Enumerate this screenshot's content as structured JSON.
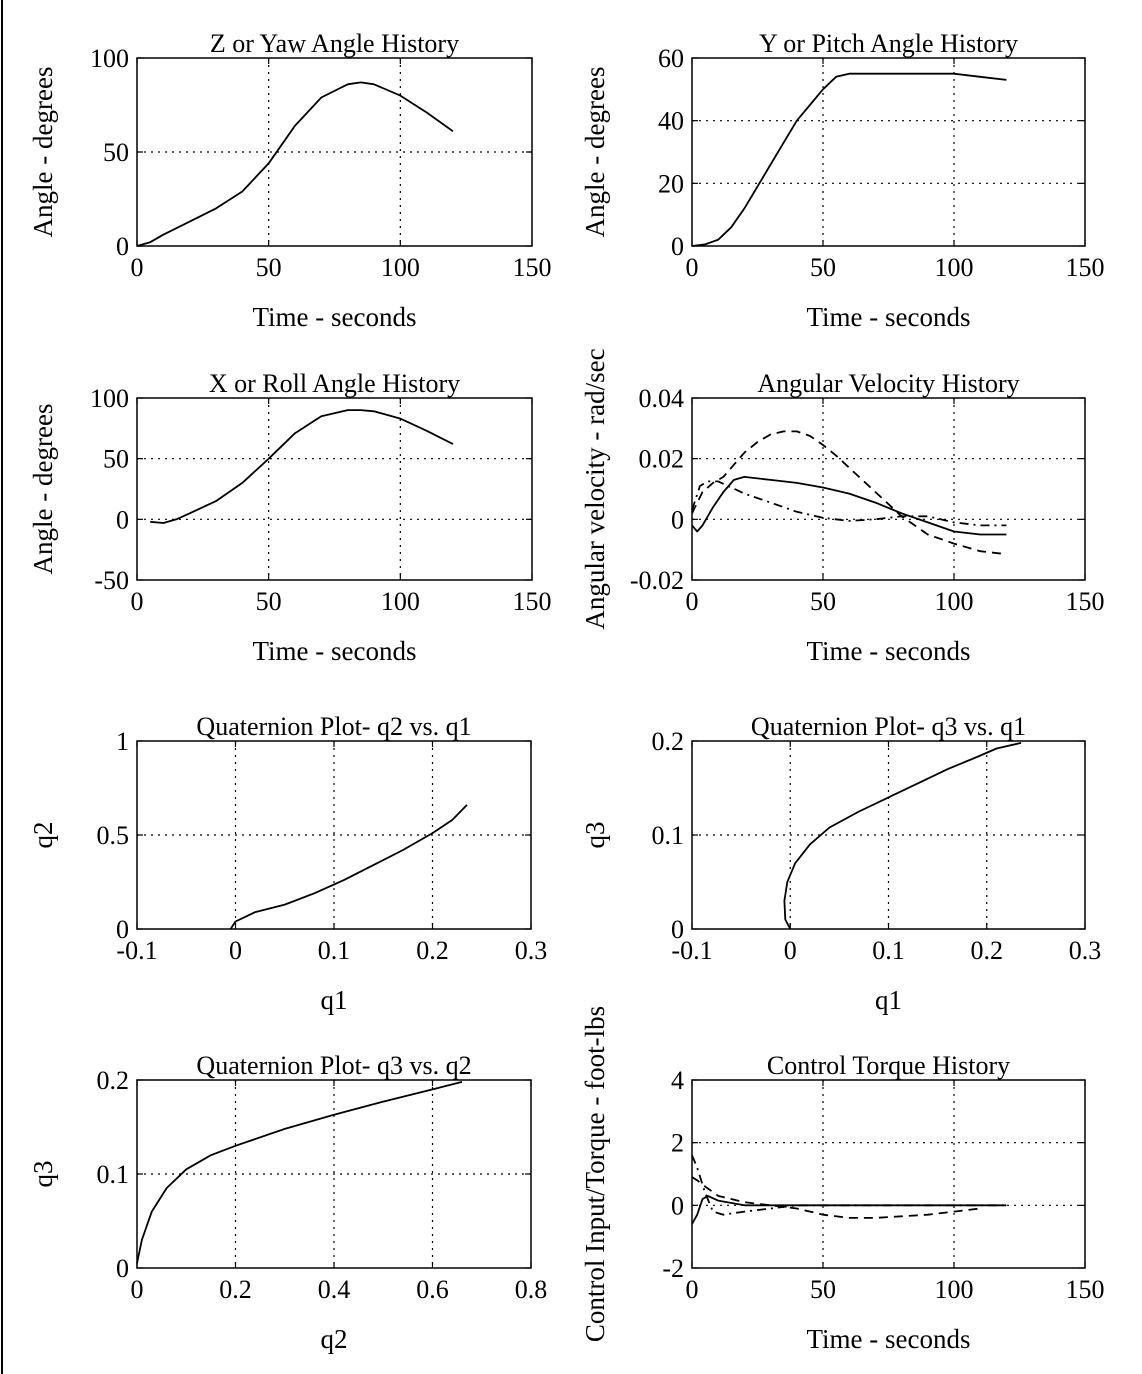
{
  "chart_data": [
    {
      "type": "line",
      "title": "Z or Yaw Angle History",
      "xlabel": "Time - seconds",
      "ylabel": "Angle - degrees",
      "xlim": [
        0,
        150
      ],
      "ylim": [
        0,
        100
      ],
      "xticks": [
        0,
        50,
        100,
        150
      ],
      "yticks": [
        0,
        50,
        100
      ],
      "xtick_labels": [
        "0",
        "50",
        "100",
        "150"
      ],
      "ytick_labels": [
        "0",
        "50",
        "100"
      ],
      "grid": true,
      "series": [
        {
          "style": "solid",
          "x": [
            0,
            5,
            10,
            20,
            30,
            40,
            50,
            60,
            70,
            80,
            85,
            90,
            100,
            110,
            120
          ],
          "y": [
            0,
            2,
            6,
            13,
            20,
            29,
            44,
            64,
            79,
            86,
            87,
            86,
            80,
            71,
            61
          ]
        }
      ]
    },
    {
      "type": "line",
      "title": "Y or Pitch Angle History",
      "xlabel": "Time - seconds",
      "ylabel": "Angle - degrees",
      "xlim": [
        0,
        150
      ],
      "ylim": [
        0,
        60
      ],
      "xticks": [
        0,
        50,
        100,
        150
      ],
      "yticks": [
        0,
        20,
        40,
        60
      ],
      "xtick_labels": [
        "0",
        "50",
        "100",
        "150"
      ],
      "ytick_labels": [
        "0",
        "20",
        "40",
        "60"
      ],
      "grid": true,
      "series": [
        {
          "style": "solid",
          "x": [
            0,
            5,
            10,
            15,
            20,
            25,
            30,
            35,
            40,
            45,
            50,
            55,
            60,
            70,
            80,
            90,
            100,
            110,
            120
          ],
          "y": [
            0,
            0.5,
            2,
            6,
            12,
            19,
            26,
            33,
            40,
            45,
            50,
            54,
            55,
            55,
            55,
            55,
            55,
            54,
            53
          ]
        }
      ]
    },
    {
      "type": "line",
      "title": "X or Roll Angle History",
      "xlabel": "Time - seconds",
      "ylabel": "Angle - degrees",
      "xlim": [
        0,
        150
      ],
      "ylim": [
        -50,
        100
      ],
      "xticks": [
        0,
        50,
        100,
        150
      ],
      "yticks": [
        -50,
        0,
        50,
        100
      ],
      "xtick_labels": [
        "0",
        "50",
        "100",
        "150"
      ],
      "ytick_labels": [
        "-50",
        "0",
        "50",
        "100"
      ],
      "grid": true,
      "series": [
        {
          "style": "solid",
          "x": [
            5,
            10,
            15,
            20,
            30,
            40,
            50,
            60,
            70,
            80,
            85,
            90,
            100,
            110,
            120
          ],
          "y": [
            -2,
            -3,
            0,
            5,
            15,
            30,
            50,
            71,
            85,
            90,
            90,
            89,
            83,
            73,
            62
          ]
        }
      ]
    },
    {
      "type": "line",
      "title": "Angular Velocity History",
      "xlabel": "Time - seconds",
      "ylabel": "Angular velocity - rad/sec",
      "xlim": [
        0,
        150
      ],
      "ylim": [
        -0.02,
        0.04
      ],
      "xticks": [
        0,
        50,
        100,
        150
      ],
      "yticks": [
        -0.02,
        0,
        0.02,
        0.04
      ],
      "xtick_labels": [
        "0",
        "50",
        "100",
        "150"
      ],
      "ytick_labels": [
        "-0.02",
        "0",
        "0.02",
        "0.04"
      ],
      "grid": true,
      "series": [
        {
          "style": "solid",
          "x": [
            0,
            2,
            4,
            8,
            12,
            16,
            20,
            30,
            40,
            50,
            60,
            70,
            80,
            90,
            100,
            110,
            120
          ],
          "y": [
            -0.002,
            -0.004,
            -0.002,
            0.004,
            0.009,
            0.013,
            0.014,
            0.013,
            0.012,
            0.0105,
            0.0085,
            0.0055,
            0.002,
            -0.001,
            -0.004,
            -0.005,
            -0.005
          ]
        },
        {
          "style": "dashed",
          "x": [
            0,
            4,
            8,
            12,
            20,
            25,
            30,
            35,
            40,
            45,
            50,
            55,
            60,
            70,
            80,
            90,
            100,
            110,
            120
          ],
          "y": [
            0.002,
            0.009,
            0.012,
            0.014,
            0.022,
            0.0255,
            0.028,
            0.029,
            0.029,
            0.0275,
            0.0245,
            0.021,
            0.017,
            0.009,
            0.001,
            -0.005,
            -0.008,
            -0.0105,
            -0.0115
          ]
        },
        {
          "style": "dashdot",
          "x": [
            0,
            3,
            6,
            10,
            15,
            20,
            30,
            40,
            50,
            60,
            70,
            80,
            90,
            100,
            110,
            120
          ],
          "y": [
            0.003,
            0.011,
            0.0125,
            0.0125,
            0.0105,
            0.0085,
            0.0055,
            0.0025,
            0.0005,
            -0.0005,
            0.0,
            0.001,
            0.001,
            -0.001,
            -0.002,
            -0.002
          ]
        }
      ]
    },
    {
      "type": "line",
      "title": "Quaternion Plot- q2 vs. q1",
      "xlabel": "q1",
      "ylabel": "q2",
      "xlim": [
        -0.1,
        0.3
      ],
      "ylim": [
        0,
        1
      ],
      "xticks": [
        -0.1,
        0,
        0.1,
        0.2,
        0.3
      ],
      "yticks": [
        0,
        0.5,
        1
      ],
      "xtick_labels": [
        "-0.1",
        "0",
        "0.1",
        "0.2",
        "0.3"
      ],
      "ytick_labels": [
        "0",
        "0.5",
        "1"
      ],
      "grid": true,
      "series": [
        {
          "style": "solid",
          "x": [
            -0.005,
            0.0,
            0.02,
            0.05,
            0.08,
            0.11,
            0.14,
            0.17,
            0.2,
            0.22,
            0.235
          ],
          "y": [
            0.0,
            0.04,
            0.09,
            0.13,
            0.19,
            0.26,
            0.34,
            0.42,
            0.51,
            0.58,
            0.66
          ]
        }
      ]
    },
    {
      "type": "line",
      "title": "Quaternion Plot- q3 vs. q1",
      "xlabel": "q1",
      "ylabel": "q3",
      "xlim": [
        -0.1,
        0.3
      ],
      "ylim": [
        0,
        0.2
      ],
      "xticks": [
        -0.1,
        0,
        0.1,
        0.2,
        0.3
      ],
      "yticks": [
        0,
        0.1,
        0.2
      ],
      "xtick_labels": [
        "-0.1",
        "0",
        "0.1",
        "0.2",
        "0.3"
      ],
      "ytick_labels": [
        "0",
        "0.1",
        "0.2"
      ],
      "grid": true,
      "series": [
        {
          "style": "solid",
          "x": [
            0.0,
            -0.005,
            -0.006,
            -0.003,
            0.005,
            0.02,
            0.04,
            0.07,
            0.1,
            0.13,
            0.16,
            0.19,
            0.21,
            0.235
          ],
          "y": [
            0.0,
            0.01,
            0.03,
            0.05,
            0.07,
            0.09,
            0.108,
            0.125,
            0.14,
            0.155,
            0.17,
            0.183,
            0.192,
            0.198
          ]
        }
      ]
    },
    {
      "type": "line",
      "title": "Quaternion Plot- q3 vs. q2",
      "xlabel": "q2",
      "ylabel": "q3",
      "xlim": [
        0,
        0.8
      ],
      "ylim": [
        0,
        0.2
      ],
      "xticks": [
        0,
        0.2,
        0.4,
        0.6,
        0.8
      ],
      "yticks": [
        0,
        0.1,
        0.2
      ],
      "xtick_labels": [
        "0",
        "0.2",
        "0.4",
        "0.6",
        "0.8"
      ],
      "ytick_labels": [
        "0",
        "0.1",
        "0.2"
      ],
      "grid": true,
      "series": [
        {
          "style": "solid",
          "x": [
            0.0,
            0.01,
            0.03,
            0.06,
            0.1,
            0.15,
            0.2,
            0.3,
            0.4,
            0.5,
            0.6,
            0.66
          ],
          "y": [
            0.005,
            0.03,
            0.06,
            0.085,
            0.105,
            0.12,
            0.13,
            0.148,
            0.163,
            0.177,
            0.19,
            0.198
          ]
        }
      ]
    },
    {
      "type": "line",
      "title": "Control Torque History",
      "xlabel": "Time - seconds",
      "ylabel": "Control Input/Torque - foot-lbs",
      "xlim": [
        0,
        150
      ],
      "ylim": [
        -2,
        4
      ],
      "xticks": [
        0,
        50,
        100,
        150
      ],
      "yticks": [
        -2,
        0,
        2,
        4
      ],
      "xtick_labels": [
        "0",
        "50",
        "100",
        "150"
      ],
      "ytick_labels": [
        "-2",
        "0",
        "2",
        "4"
      ],
      "grid": true,
      "series": [
        {
          "style": "solid",
          "x": [
            0,
            2,
            4,
            6,
            10,
            20,
            40,
            60,
            80,
            100,
            120
          ],
          "y": [
            -0.6,
            -0.3,
            0.2,
            0.3,
            0.15,
            0.0,
            0.0,
            0.0,
            0.0,
            0.0,
            0.0
          ]
        },
        {
          "style": "dashed",
          "x": [
            0,
            2,
            5,
            10,
            20,
            40,
            50,
            60,
            70,
            80,
            90,
            100,
            110
          ],
          "y": [
            0.9,
            0.8,
            0.6,
            0.3,
            0.1,
            -0.1,
            -0.3,
            -0.4,
            -0.4,
            -0.35,
            -0.3,
            -0.2,
            -0.1
          ]
        },
        {
          "style": "dashdot",
          "x": [
            0,
            2,
            5,
            8,
            12,
            20,
            30,
            40,
            60,
            80,
            100,
            120
          ],
          "y": [
            1.6,
            1.2,
            0.4,
            -0.2,
            -0.3,
            -0.2,
            -0.1,
            0.0,
            0.0,
            0.0,
            0.0,
            0.0
          ]
        }
      ]
    }
  ]
}
